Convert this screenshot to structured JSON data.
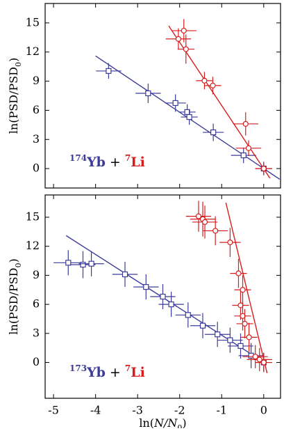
{
  "chart_data": [
    {
      "type": "scatter",
      "xlim": [
        -5.2,
        0.4
      ],
      "ylim": [
        -2,
        17
      ],
      "xticks": [
        -5,
        -4,
        -3,
        -2,
        -1,
        0
      ],
      "yticks": [
        0,
        3,
        6,
        9,
        12,
        15
      ],
      "show_xtick_labels": false,
      "ylabel": [
        "ln(PSD/PSD",
        "0",
        ")"
      ],
      "joiner": "+",
      "series": [
        {
          "isotope": "174",
          "name": "Yb",
          "color": "#3b3b9b",
          "marker": "square",
          "x": [
            -3.69,
            -2.75,
            -2.1,
            -1.82,
            -1.77,
            -1.2,
            -0.48,
            0
          ],
          "values": [
            10.05,
            7.75,
            6.75,
            5.82,
            5.31,
            3.73,
            1.36,
            0
          ],
          "xerr": [
            0.3,
            0.3,
            0.25,
            0.2,
            0.2,
            0.25,
            0.3,
            0.2
          ],
          "yerr": [
            0.8,
            1.0,
            0.9,
            0.8,
            0.8,
            0.9,
            0.8,
            0.7
          ],
          "fit": {
            "x": [
              -4,
              0.38
            ],
            "values": [
              11.6,
              -1.1
            ]
          }
        },
        {
          "isotope": "7",
          "name": "Li",
          "color": "#d81c1c",
          "marker": "circle",
          "x": [
            -1.9,
            -2.03,
            -1.85,
            -1.41,
            -1.21,
            -0.43,
            -0.36,
            0
          ],
          "values": [
            14.2,
            13.35,
            12.3,
            9.05,
            8.55,
            4.6,
            2.1,
            0
          ],
          "xerr": [
            0.3,
            0.3,
            0.2,
            0.2,
            0.2,
            0.3,
            0.3,
            0.2
          ],
          "yerr": [
            1.2,
            1.1,
            1.5,
            0.9,
            0.9,
            1.2,
            0.8,
            0.6
          ],
          "fit": {
            "x": [
              -2.26,
              0.15
            ],
            "values": [
              14.7,
              -1.0
            ]
          }
        }
      ]
    },
    {
      "type": "scatter",
      "xlim": [
        -5.2,
        0.4
      ],
      "ylim": [
        -3.7,
        17.3
      ],
      "xticks": [
        -5,
        -4,
        -3,
        -2,
        -1,
        0
      ],
      "yticks": [
        0,
        3,
        6,
        9,
        12,
        15
      ],
      "show_xtick_labels": true,
      "xlabel": [
        "ln(",
        "N/N",
        "0",
        ")"
      ],
      "ylabel": [
        "ln(PSD/PSD",
        "0",
        ")"
      ],
      "joiner": "+",
      "series": [
        {
          "isotope": "173",
          "name": "Yb",
          "color": "#3b3b9b",
          "marker": "square",
          "x": [
            -4.65,
            -4.3,
            -4.1,
            -3.3,
            -2.8,
            -2.4,
            -2.2,
            -1.8,
            -1.45,
            -1.1,
            -0.8,
            -0.55,
            -0.3,
            0
          ],
          "values": [
            10.3,
            10.1,
            10.2,
            9.1,
            7.8,
            6.8,
            6.0,
            4.9,
            3.8,
            2.9,
            2.3,
            1.7,
            0.7,
            0
          ],
          "xerr": [
            0.35,
            0.3,
            0.3,
            0.3,
            0.3,
            0.3,
            0.3,
            0.3,
            0.3,
            0.3,
            0.3,
            0.3,
            0.3,
            0.2
          ],
          "yerr": [
            1.3,
            1.4,
            1.3,
            1.3,
            1.3,
            1.3,
            1.3,
            1.3,
            1.3,
            1.3,
            1.3,
            1.3,
            1.3,
            1.0
          ],
          "fit": {
            "x": [
              -4.7,
              0.05
            ],
            "values": [
              13.1,
              -0.1
            ]
          }
        },
        {
          "isotope": "7",
          "name": "Li",
          "color": "#d81c1c",
          "marker": "circle",
          "x": [
            -1.55,
            -1.45,
            -1.4,
            -1.15,
            -0.8,
            -0.6,
            -0.5,
            -0.55,
            -0.5,
            -0.45,
            -0.35,
            -0.2,
            -0.1,
            0
          ],
          "values": [
            15.1,
            14.8,
            14.5,
            13.6,
            12.4,
            9.2,
            7.5,
            5.9,
            4.8,
            4.0,
            2.6,
            0.6,
            0.3,
            0
          ],
          "xerr": [
            0.3,
            0.3,
            0.3,
            0.3,
            0.25,
            0.2,
            0.2,
            0.2,
            0.2,
            0.2,
            0.2,
            0.3,
            0.3,
            0.2
          ],
          "yerr": [
            1.6,
            1.8,
            1.7,
            1.5,
            1.5,
            1.5,
            1.5,
            1.5,
            1.5,
            1.5,
            1.5,
            1.2,
            1.2,
            1.0
          ],
          "fit": {
            "x": [
              -0.9,
              0.08
            ],
            "values": [
              16.5,
              -1.1
            ]
          }
        }
      ]
    }
  ]
}
